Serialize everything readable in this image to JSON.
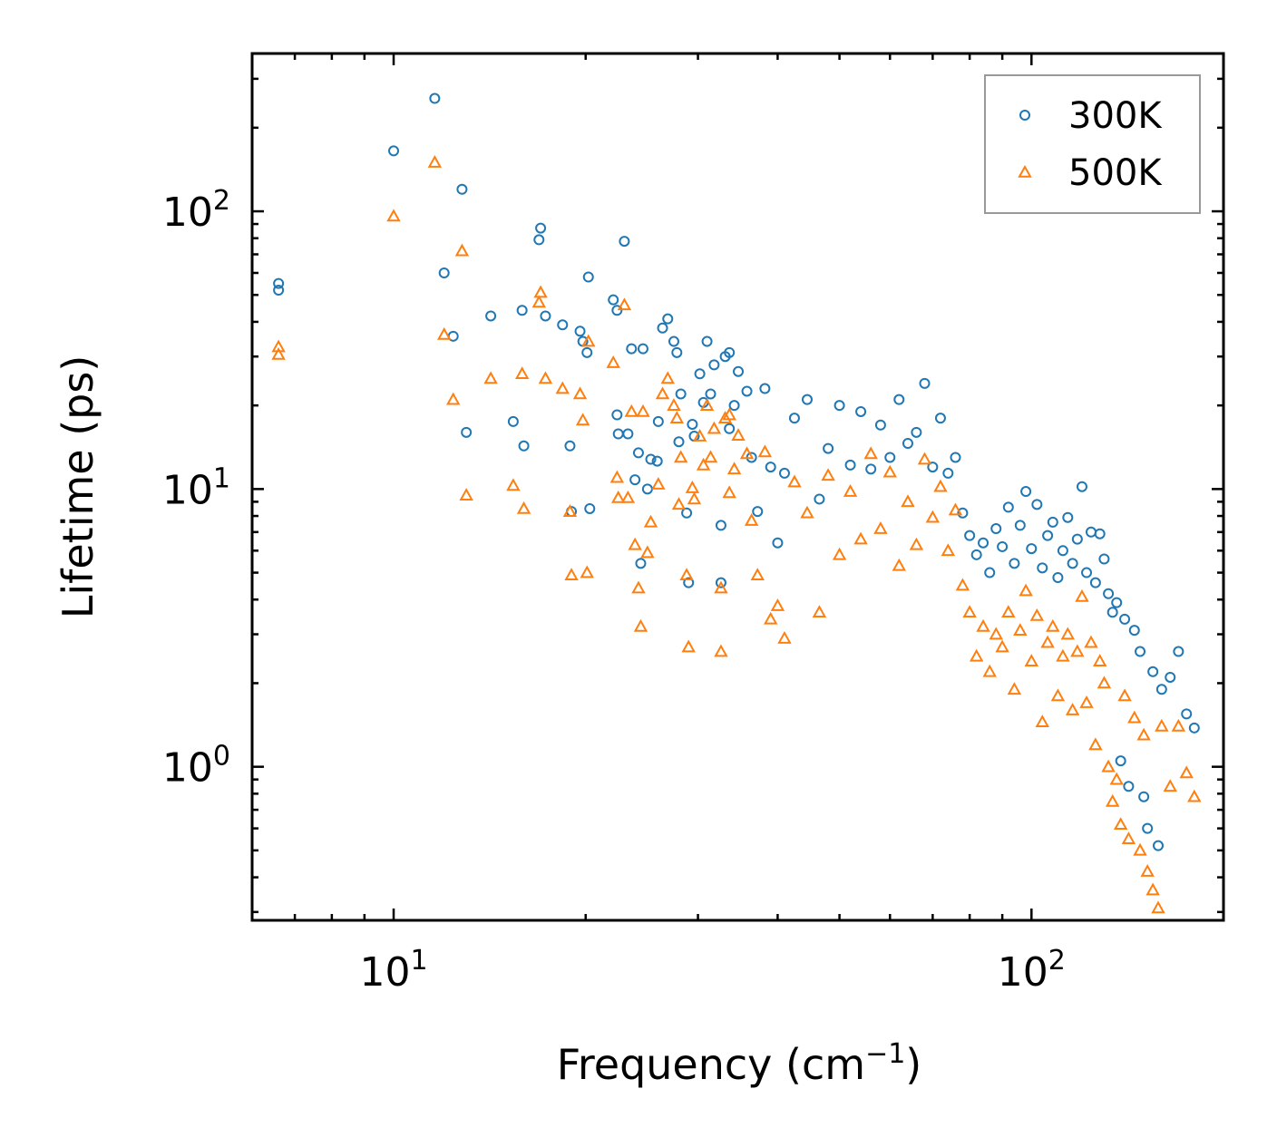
{
  "chart_data": {
    "type": "scatter",
    "title": "",
    "xlabel": "Frequency (cm",
    "xlabel_superscript": "−1",
    "xlabel_suffix": ")",
    "ylabel": "Lifetime (ps)",
    "xscale": "log",
    "yscale": "log",
    "xlim": [
      6.0,
      200.0
    ],
    "ylim": [
      0.28,
      370.0
    ],
    "x_ticks": [
      {
        "base": "10",
        "exp": "1",
        "value": 10
      },
      {
        "base": "10",
        "exp": "2",
        "value": 100
      }
    ],
    "y_ticks": [
      {
        "base": "10",
        "exp": "0",
        "value": 1
      },
      {
        "base": "10",
        "exp": "1",
        "value": 10
      },
      {
        "base": "10",
        "exp": "2",
        "value": 100
      }
    ],
    "legend_position": "top-right",
    "series": [
      {
        "name": "300K",
        "marker": "circle",
        "color": "#1f77b4",
        "points": [
          [
            6.6,
            55
          ],
          [
            6.6,
            52
          ],
          [
            10.0,
            165
          ],
          [
            11.6,
            255
          ],
          [
            12.0,
            60
          ],
          [
            12.4,
            35.5
          ],
          [
            12.8,
            120
          ],
          [
            13.0,
            16
          ],
          [
            14.2,
            42
          ],
          [
            15.4,
            17.5
          ],
          [
            15.9,
            44
          ],
          [
            16.0,
            14.3
          ],
          [
            16.9,
            79
          ],
          [
            17.0,
            87
          ],
          [
            17.3,
            42
          ],
          [
            18.4,
            39
          ],
          [
            18.9,
            14.3
          ],
          [
            19.0,
            8.3
          ],
          [
            19.6,
            37
          ],
          [
            19.8,
            34
          ],
          [
            20.1,
            31
          ],
          [
            20.2,
            58
          ],
          [
            20.3,
            8.5
          ],
          [
            22.1,
            48
          ],
          [
            22.4,
            44
          ],
          [
            22.4,
            18.5
          ],
          [
            22.5,
            15.8
          ],
          [
            23.0,
            78
          ],
          [
            23.3,
            15.8
          ],
          [
            23.6,
            32
          ],
          [
            23.9,
            10.8
          ],
          [
            24.2,
            13.5
          ],
          [
            24.4,
            5.4
          ],
          [
            24.6,
            32
          ],
          [
            25.0,
            10.0
          ],
          [
            25.3,
            12.8
          ],
          [
            25.9,
            12.6
          ],
          [
            26.0,
            17.5
          ],
          [
            26.4,
            38
          ],
          [
            26.9,
            41
          ],
          [
            27.5,
            34
          ],
          [
            27.8,
            31
          ],
          [
            28.0,
            14.8
          ],
          [
            28.2,
            22
          ],
          [
            28.8,
            8.2
          ],
          [
            29.0,
            4.6
          ],
          [
            29.4,
            17.1
          ],
          [
            29.6,
            15.5
          ],
          [
            30.2,
            26
          ],
          [
            30.6,
            20.5
          ],
          [
            31.0,
            34
          ],
          [
            31.4,
            22
          ],
          [
            31.8,
            28
          ],
          [
            32.6,
            7.4
          ],
          [
            32.6,
            4.6
          ],
          [
            33.1,
            30
          ],
          [
            33.6,
            31
          ],
          [
            33.6,
            16.5
          ],
          [
            34.2,
            20
          ],
          [
            34.7,
            26.5
          ],
          [
            35.8,
            22.5
          ],
          [
            36.4,
            13
          ],
          [
            37.2,
            8.3
          ],
          [
            38.2,
            23
          ],
          [
            39.0,
            12
          ],
          [
            40.0,
            6.4
          ],
          [
            41.0,
            11.4
          ],
          [
            42.5,
            18
          ],
          [
            44.5,
            21
          ],
          [
            46.5,
            9.2
          ],
          [
            48.0,
            14
          ],
          [
            50.0,
            20
          ],
          [
            52.0,
            12.2
          ],
          [
            54.0,
            19
          ],
          [
            56.0,
            11.8
          ],
          [
            58.0,
            17
          ],
          [
            60.0,
            13
          ],
          [
            62.0,
            21
          ],
          [
            64.0,
            14.6
          ],
          [
            66.0,
            16
          ],
          [
            68.0,
            24
          ],
          [
            70.0,
            12
          ],
          [
            72.0,
            18
          ],
          [
            74.0,
            11.4
          ],
          [
            76.0,
            13
          ],
          [
            78.0,
            8.2
          ],
          [
            80.0,
            6.8
          ],
          [
            82.0,
            5.8
          ],
          [
            84.0,
            6.4
          ],
          [
            86.0,
            5.0
          ],
          [
            88.0,
            7.2
          ],
          [
            90.0,
            6.2
          ],
          [
            92.0,
            8.6
          ],
          [
            94.0,
            5.4
          ],
          [
            96.0,
            7.4
          ],
          [
            98.0,
            9.8
          ],
          [
            100.0,
            6.1
          ],
          [
            102.0,
            8.8
          ],
          [
            104.0,
            5.2
          ],
          [
            106.0,
            6.8
          ],
          [
            108.0,
            7.6
          ],
          [
            110.0,
            4.8
          ],
          [
            112.0,
            6.0
          ],
          [
            114.0,
            7.9
          ],
          [
            116.0,
            5.4
          ],
          [
            118.0,
            6.6
          ],
          [
            120.0,
            10.2
          ],
          [
            122.0,
            5.0
          ],
          [
            124.0,
            7.0
          ],
          [
            126.0,
            4.6
          ],
          [
            128.0,
            6.9
          ],
          [
            130.0,
            5.6
          ],
          [
            132.0,
            4.2
          ],
          [
            134.0,
            3.6
          ],
          [
            136.0,
            3.9
          ],
          [
            138.0,
            1.05
          ],
          [
            140.0,
            3.4
          ],
          [
            142.0,
            0.85
          ],
          [
            145.0,
            3.1
          ],
          [
            148.0,
            2.6
          ],
          [
            150.0,
            0.78
          ],
          [
            152.0,
            0.6
          ],
          [
            155.0,
            2.2
          ],
          [
            158.0,
            0.52
          ],
          [
            160.0,
            1.9
          ],
          [
            165.0,
            2.1
          ],
          [
            170.0,
            2.6
          ],
          [
            175.0,
            1.55
          ],
          [
            180.0,
            1.38
          ]
        ]
      },
      {
        "name": "500K",
        "marker": "triangle",
        "color": "#ff7f0e",
        "points": [
          [
            6.6,
            32.5
          ],
          [
            6.6,
            30.5
          ],
          [
            10.0,
            96
          ],
          [
            11.6,
            150
          ],
          [
            12.0,
            36
          ],
          [
            12.4,
            21
          ],
          [
            12.8,
            72
          ],
          [
            13.0,
            9.5
          ],
          [
            14.2,
            25
          ],
          [
            15.4,
            10.3
          ],
          [
            15.9,
            26
          ],
          [
            16.0,
            8.5
          ],
          [
            16.9,
            47
          ],
          [
            17.0,
            51
          ],
          [
            17.3,
            25
          ],
          [
            18.4,
            23
          ],
          [
            18.9,
            8.3
          ],
          [
            19.0,
            4.9
          ],
          [
            19.6,
            22
          ],
          [
            19.8,
            17.7
          ],
          [
            20.1,
            5.0
          ],
          [
            20.2,
            34
          ],
          [
            22.1,
            28.5
          ],
          [
            22.4,
            11
          ],
          [
            22.5,
            9.3
          ],
          [
            23.0,
            46
          ],
          [
            23.3,
            9.3
          ],
          [
            23.6,
            19
          ],
          [
            23.9,
            6.3
          ],
          [
            24.2,
            4.4
          ],
          [
            24.4,
            3.2
          ],
          [
            24.6,
            19
          ],
          [
            25.0,
            5.9
          ],
          [
            25.3,
            7.6
          ],
          [
            26.0,
            10.4
          ],
          [
            26.4,
            22
          ],
          [
            26.9,
            25
          ],
          [
            27.5,
            20
          ],
          [
            27.8,
            18
          ],
          [
            28.0,
            8.8
          ],
          [
            28.2,
            13
          ],
          [
            28.8,
            4.9
          ],
          [
            29.0,
            2.7
          ],
          [
            29.4,
            10.1
          ],
          [
            29.6,
            9.2
          ],
          [
            30.2,
            15.5
          ],
          [
            30.6,
            12.2
          ],
          [
            31.0,
            20
          ],
          [
            31.4,
            13
          ],
          [
            31.8,
            16.5
          ],
          [
            32.6,
            4.4
          ],
          [
            32.6,
            2.6
          ],
          [
            33.1,
            18
          ],
          [
            33.6,
            18.5
          ],
          [
            33.6,
            9.7
          ],
          [
            34.2,
            11.8
          ],
          [
            34.7,
            15.6
          ],
          [
            35.8,
            13.4
          ],
          [
            36.4,
            7.7
          ],
          [
            37.2,
            4.9
          ],
          [
            38.2,
            13.6
          ],
          [
            39.0,
            3.4
          ],
          [
            40.0,
            3.8
          ],
          [
            41.0,
            2.9
          ],
          [
            42.5,
            10.6
          ],
          [
            44.5,
            8.2
          ],
          [
            46.5,
            3.6
          ],
          [
            48.0,
            11.2
          ],
          [
            50.0,
            5.8
          ],
          [
            52.0,
            9.8
          ],
          [
            54.0,
            6.6
          ],
          [
            56.0,
            13.4
          ],
          [
            58.0,
            7.2
          ],
          [
            60.0,
            11.5
          ],
          [
            62.0,
            5.3
          ],
          [
            64.0,
            9.0
          ],
          [
            66.0,
            6.3
          ],
          [
            68.0,
            12.8
          ],
          [
            70.0,
            7.9
          ],
          [
            72.0,
            10.2
          ],
          [
            74.0,
            6.0
          ],
          [
            76.0,
            8.4
          ],
          [
            78.0,
            4.5
          ],
          [
            80.0,
            3.6
          ],
          [
            82.0,
            2.5
          ],
          [
            84.0,
            3.2
          ],
          [
            86.0,
            2.2
          ],
          [
            88.0,
            3.0
          ],
          [
            90.0,
            2.7
          ],
          [
            92.0,
            3.6
          ],
          [
            94.0,
            1.9
          ],
          [
            96.0,
            3.1
          ],
          [
            98.0,
            4.3
          ],
          [
            100.0,
            2.4
          ],
          [
            102.0,
            3.5
          ],
          [
            104.0,
            1.45
          ],
          [
            106.0,
            2.8
          ],
          [
            108.0,
            3.2
          ],
          [
            110.0,
            1.8
          ],
          [
            112.0,
            2.5
          ],
          [
            114.0,
            3.0
          ],
          [
            116.0,
            1.6
          ],
          [
            118.0,
            2.6
          ],
          [
            120.0,
            4.1
          ],
          [
            122.0,
            1.7
          ],
          [
            124.0,
            2.8
          ],
          [
            126.0,
            1.2
          ],
          [
            128.0,
            2.4
          ],
          [
            130.0,
            2.0
          ],
          [
            132.0,
            1.0
          ],
          [
            134.0,
            0.75
          ],
          [
            136.0,
            0.9
          ],
          [
            138.0,
            0.62
          ],
          [
            140.0,
            1.8
          ],
          [
            142.0,
            0.55
          ],
          [
            145.0,
            1.5
          ],
          [
            148.0,
            0.5
          ],
          [
            150.0,
            1.3
          ],
          [
            152.0,
            0.42
          ],
          [
            155.0,
            0.36
          ],
          [
            158.0,
            0.31
          ],
          [
            160.0,
            1.4
          ],
          [
            165.0,
            0.85
          ],
          [
            170.0,
            1.4
          ],
          [
            175.0,
            0.95
          ],
          [
            180.0,
            0.78
          ]
        ]
      }
    ]
  }
}
